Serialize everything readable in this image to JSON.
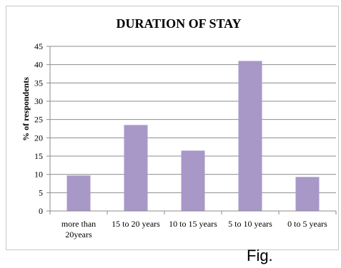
{
  "chart_data": {
    "type": "bar",
    "title": "DURATION OF STAY",
    "xlabel": "",
    "ylabel": "% of respondents",
    "categories": [
      "more than 20years",
      "15 to 20 years",
      "10 to 15 years",
      "5 to 10 years",
      "0 to 5 years"
    ],
    "category_lines": [
      [
        "more than",
        "20years"
      ],
      [
        "15 to 20 years"
      ],
      [
        "10 to 15 years"
      ],
      [
        "5 to 10 years"
      ],
      [
        "0 to 5 years"
      ]
    ],
    "values": [
      9.7,
      23.5,
      16.5,
      41,
      9.3
    ],
    "ylim": [
      0,
      45
    ],
    "yticks": [
      0,
      5,
      10,
      15,
      20,
      25,
      30,
      35,
      40,
      45
    ],
    "grid": true,
    "legend": "none",
    "bar_color": "#a898c8",
    "grid_color": "#8c8c8c"
  },
  "caption": "Fig."
}
